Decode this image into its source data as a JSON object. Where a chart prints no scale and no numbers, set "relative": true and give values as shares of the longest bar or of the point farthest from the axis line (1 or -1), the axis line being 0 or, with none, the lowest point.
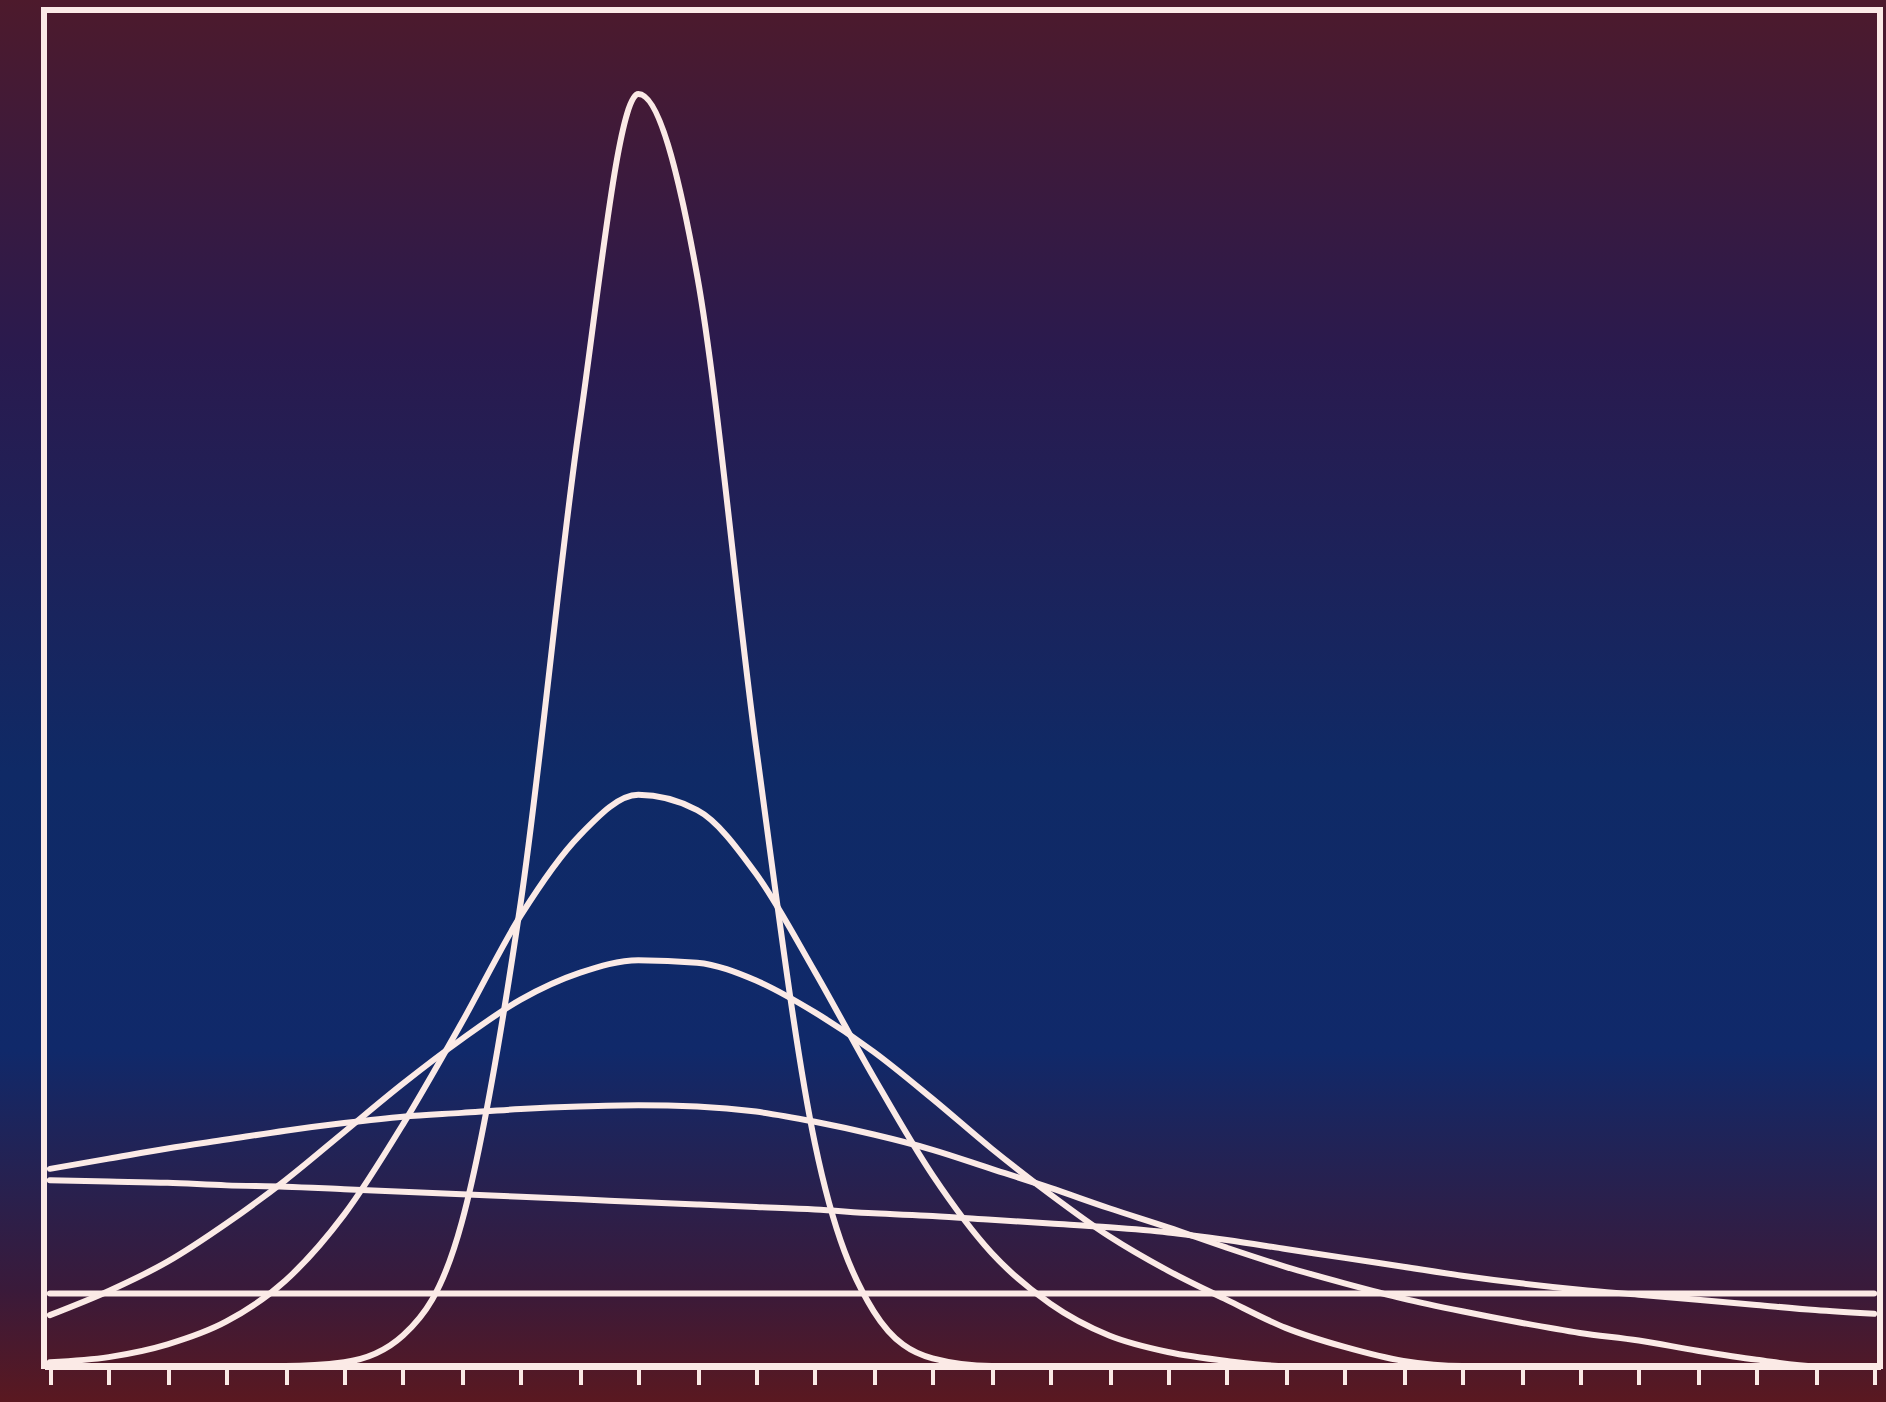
{
  "chart_data": {
    "type": "line",
    "relative": true,
    "marker": "none",
    "categories": [
      null,
      null,
      null,
      null,
      null,
      null,
      null,
      null,
      null,
      null,
      null,
      null,
      null,
      null,
      null,
      null,
      null,
      null,
      null,
      null,
      null,
      null,
      null,
      null,
      null,
      null,
      null,
      null,
      null,
      null,
      null,
      null
    ],
    "series": [
      {
        "color": "#fbeae6",
        "values": [
          0,
          0,
          0,
          0,
          0,
          0.003,
          0.024,
          0.113,
          0.364,
          0.74,
          1,
          0.857,
          0.487,
          0.175,
          0.043,
          0.006,
          0,
          0,
          0,
          0,
          0,
          0,
          0,
          0,
          0,
          0,
          0,
          0,
          0,
          0,
          0,
          0
        ]
      },
      {
        "color": "#fbeae6",
        "values": [
          0.003,
          0.007,
          0.017,
          0.035,
          0.067,
          0.119,
          0.19,
          0.27,
          0.354,
          0.417,
          0.449,
          0.437,
          0.387,
          0.31,
          0.227,
          0.15,
          0.089,
          0.049,
          0.024,
          0.011,
          0.004,
          0,
          0,
          0,
          0,
          0,
          0,
          0,
          0,
          0,
          0,
          0
        ]
      },
      {
        "color": "#fbeae6",
        "values": [
          0.04,
          0.059,
          0.082,
          0.112,
          0.146,
          0.184,
          0.222,
          0.257,
          0.288,
          0.309,
          0.319,
          0.317,
          0.303,
          0.278,
          0.247,
          0.21,
          0.171,
          0.135,
          0.102,
          0.075,
          0.052,
          0.03,
          0.015,
          0.004,
          0,
          0,
          0,
          0,
          0,
          0,
          0,
          0
        ]
      },
      {
        "color": "#fbeae6",
        "values": [
          0.155,
          0.163,
          0.171,
          0.178,
          0.185,
          0.191,
          0.196,
          0.199,
          0.202,
          0.204,
          0.205,
          0.204,
          0.2,
          0.192,
          0.182,
          0.17,
          0.155,
          0.14,
          0.124,
          0.109,
          0.093,
          0.078,
          0.065,
          0.053,
          0.043,
          0.034,
          0.026,
          0.02,
          0.012,
          0.005,
          0,
          0
        ]
      },
      {
        "color": "#fbeae6",
        "values": [
          0.146,
          0.145,
          0.144,
          0.142,
          0.141,
          0.139,
          0.137,
          0.135,
          0.133,
          0.131,
          0.129,
          0.127,
          0.125,
          0.123,
          0.12,
          0.118,
          0.115,
          0.112,
          0.109,
          0.105,
          0.099,
          0.092,
          0.085,
          0.078,
          0.071,
          0.065,
          0.06,
          0.056,
          0.052,
          0.048,
          0.044,
          0.041
        ]
      },
      {
        "color": "#fbeae6",
        "values": [
          0.057,
          0.057,
          0.057,
          0.057,
          0.057,
          0.057,
          0.057,
          0.057,
          0.057,
          0.057,
          0.057,
          0.057,
          0.057,
          0.057,
          0.057,
          0.057,
          0.057,
          0.057,
          0.057,
          0.057,
          0.057,
          0.057,
          0.057,
          0.057,
          0.057,
          0.057,
          0.057,
          0.057,
          0.057,
          0.057,
          0.057,
          0.057
        ]
      }
    ]
  }
}
